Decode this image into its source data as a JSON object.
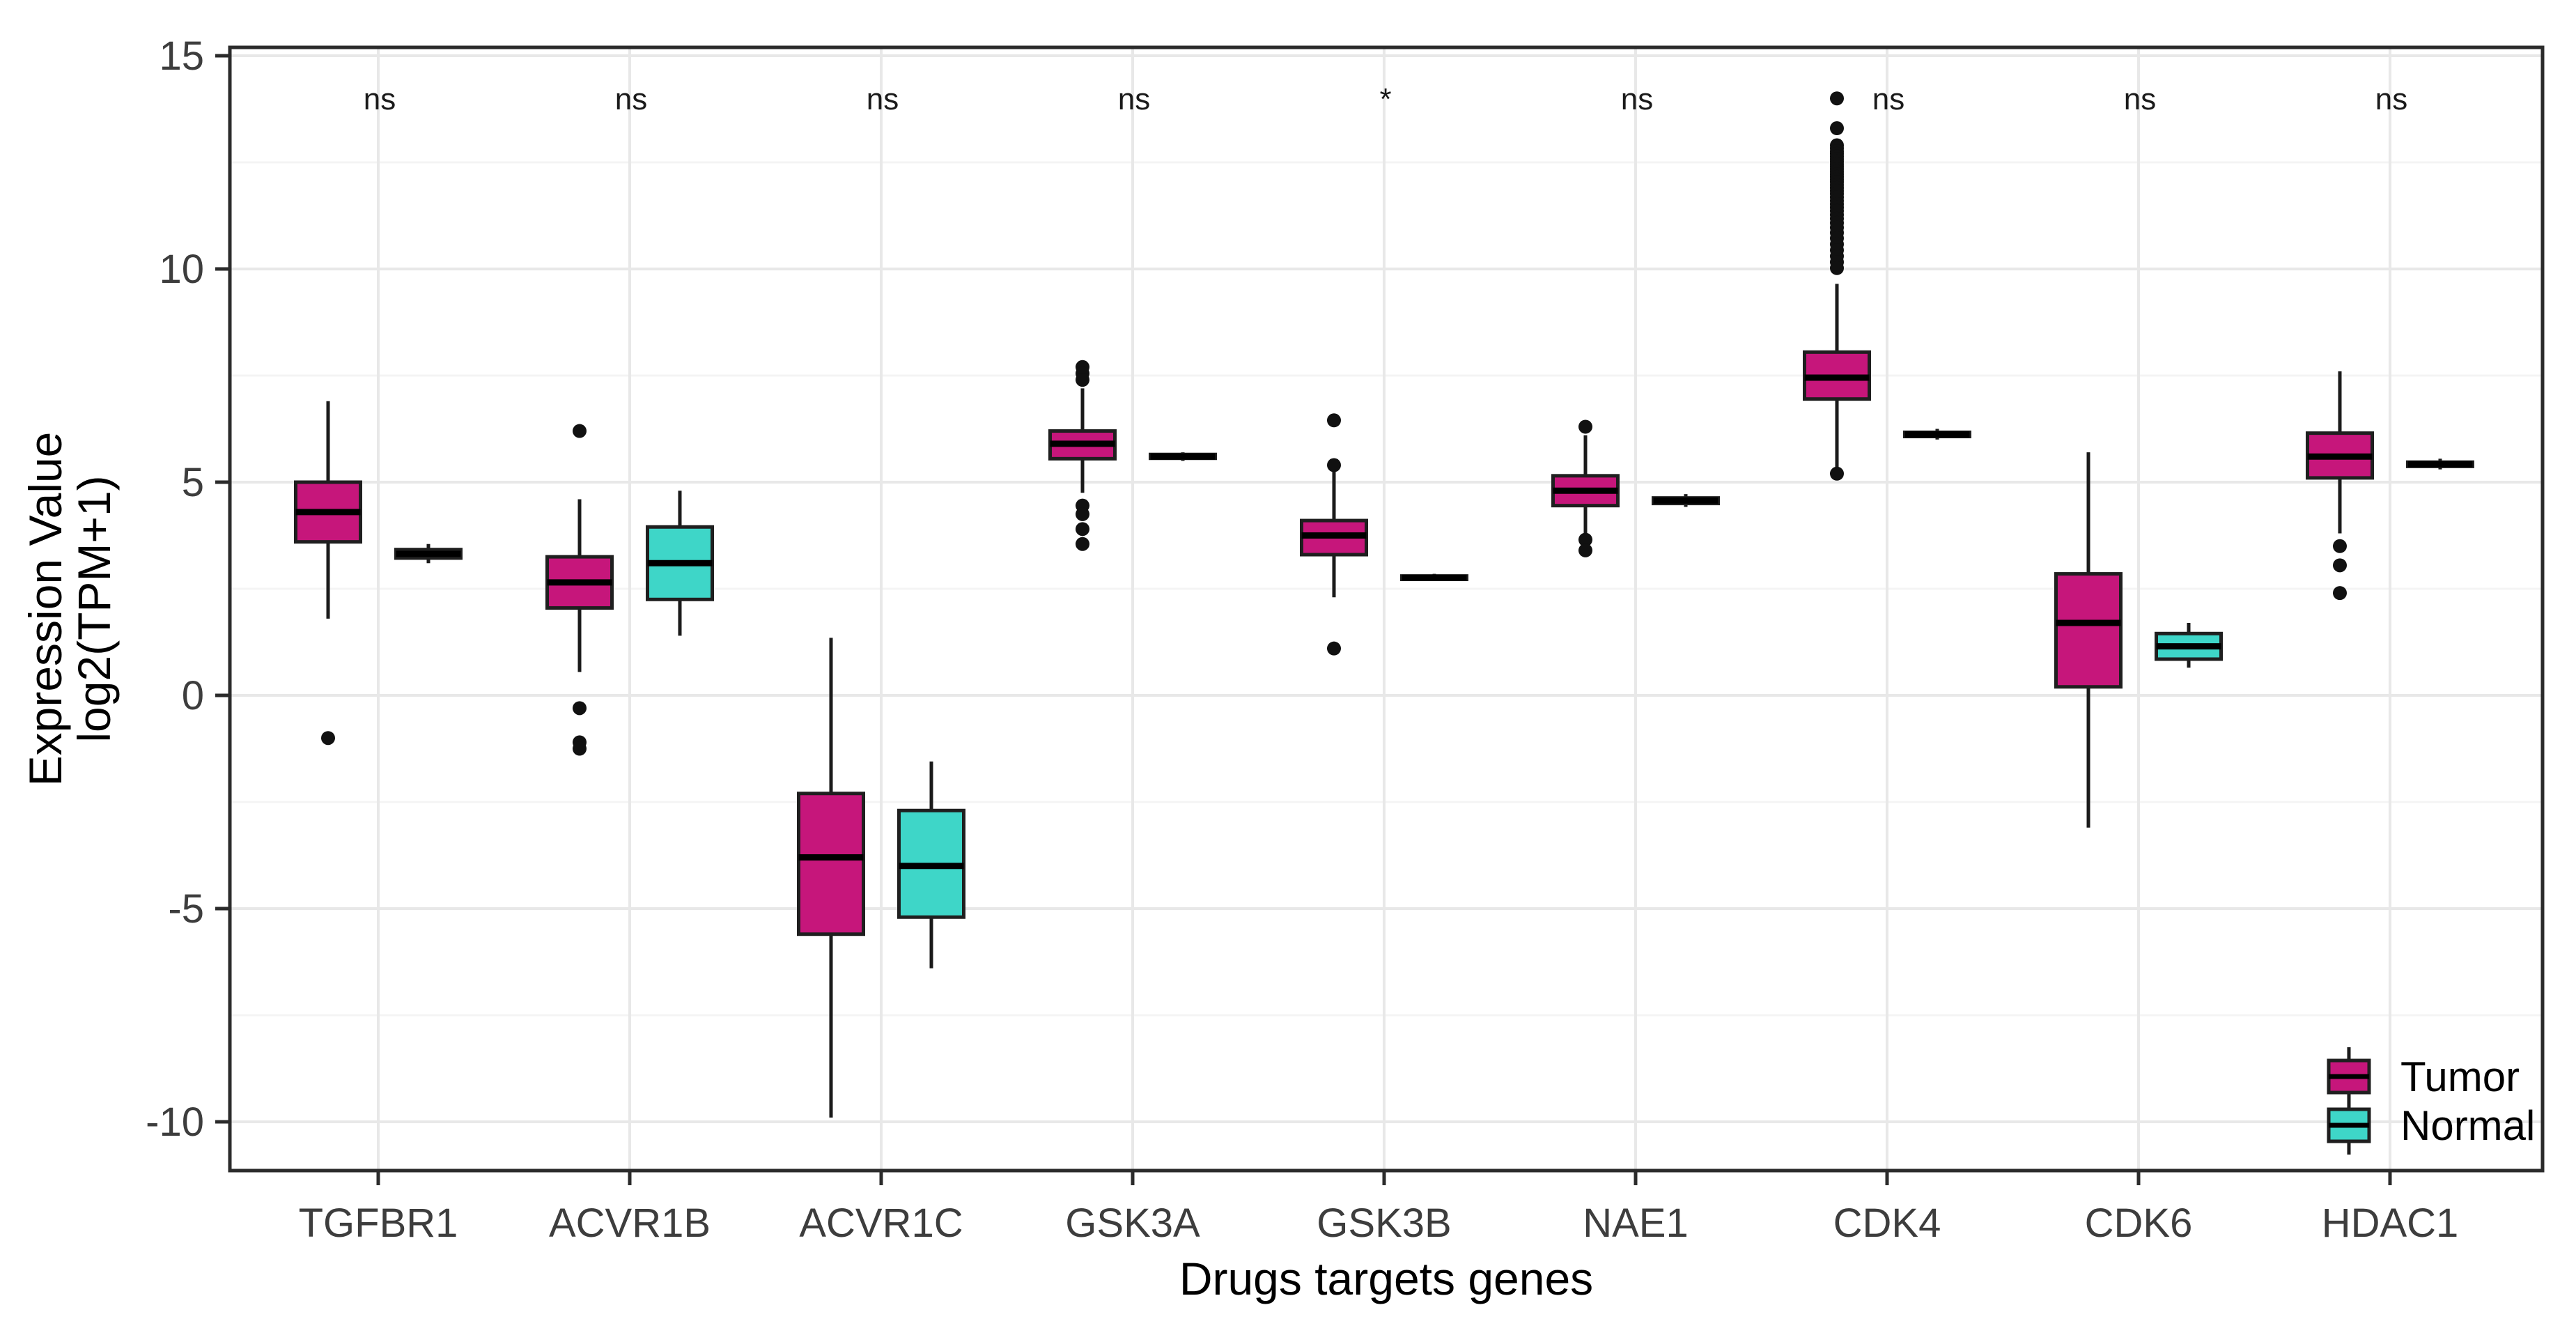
{
  "figure": {
    "kind": "grouped-boxplot",
    "background": "#ffffff"
  },
  "y_axis": {
    "title_line1": "Expression Value",
    "title_line2": "log2(TPM+1)",
    "tick_labels": [
      "15",
      "10",
      "5",
      "0",
      "-5",
      "-10"
    ],
    "tick_values": [
      15,
      10,
      5,
      0,
      -5,
      -10
    ],
    "minor_tick_values": [
      12.5,
      7.5,
      2.5,
      -2.5,
      -7.5
    ]
  },
  "x_axis": {
    "title": "Drugs targets genes",
    "tick_labels": [
      "TGFBR1",
      "ACVR1B",
      "ACVR1C",
      "GSK3A",
      "GSK3B",
      "NAE1",
      "CDK4",
      "CDK6",
      "HDAC1"
    ]
  },
  "legend": {
    "items": [
      {
        "label": "Tumor",
        "color": "#C6167B"
      },
      {
        "label": "Normal",
        "color": "#3ED6C8"
      }
    ]
  },
  "colors": {
    "tumor": "#C6167B",
    "normal": "#3ED6C8",
    "box_stroke": "#1F1F1F",
    "median_line": "#000000",
    "whisker": "#1A1A1A",
    "outlier": "#111111",
    "grid_major": "#E8E8E8",
    "grid_minor": "#F4F4F4",
    "panel_border": "#2B2B2B",
    "tick_mark": "#2B2B2B"
  },
  "chart_data": {
    "type": "boxplot",
    "title": "",
    "xlabel": "Drugs targets genes",
    "ylabel": "Expression Value log2(TPM+1)",
    "ylim": [
      -11.15,
      15.25
    ],
    "grid": true,
    "legend_position": "inside-bottom-right",
    "categories": [
      "TGFBR1",
      "ACVR1B",
      "ACVR1C",
      "GSK3A",
      "GSK3B",
      "NAE1",
      "CDK4",
      "CDK6",
      "HDAC1"
    ],
    "significance": [
      "ns",
      "ns",
      "ns",
      "ns",
      "*",
      "ns",
      "ns",
      "ns",
      "ns"
    ],
    "series": [
      {
        "name": "Tumor",
        "color": "#C6167B",
        "boxes": [
          {
            "gene": "TGFBR1",
            "low": 1.8,
            "q1": 3.6,
            "median": 4.3,
            "q3": 5.0,
            "high": 6.9,
            "outliers": [
              -1.0
            ]
          },
          {
            "gene": "ACVR1B",
            "low": 0.55,
            "q1": 2.05,
            "median": 2.65,
            "q3": 3.25,
            "high": 4.6,
            "outliers": [
              6.2,
              -0.3,
              -1.1,
              -1.25
            ]
          },
          {
            "gene": "ACVR1C",
            "low": -9.9,
            "q1": -5.6,
            "median": -3.8,
            "q3": -2.3,
            "high": 1.35,
            "outliers": []
          },
          {
            "gene": "GSK3A",
            "low": 4.75,
            "q1": 5.55,
            "median": 5.9,
            "q3": 6.2,
            "high": 7.2,
            "outliers": [
              7.7,
              7.55,
              7.4,
              4.45,
              4.25,
              3.9,
              3.55
            ]
          },
          {
            "gene": "GSK3B",
            "low": 2.3,
            "q1": 3.3,
            "median": 3.75,
            "q3": 4.1,
            "high": 5.25,
            "outliers": [
              6.45,
              5.4,
              1.1
            ]
          },
          {
            "gene": "NAE1",
            "low": 3.8,
            "q1": 4.45,
            "median": 4.8,
            "q3": 5.15,
            "high": 6.1,
            "outliers": [
              6.3,
              3.65,
              3.4
            ]
          },
          {
            "gene": "CDK4",
            "low": 5.25,
            "q1": 6.95,
            "median": 7.45,
            "q3": 8.05,
            "high": 9.65,
            "outliers": [
              14.0,
              13.3,
              12.9,
              12.83,
              12.76,
              12.7,
              12.64,
              12.58,
              12.52,
              12.46,
              12.4,
              12.34,
              12.28,
              12.22,
              12.16,
              12.1,
              12.04,
              11.97,
              11.9,
              11.83,
              11.76,
              11.68,
              11.6,
              11.52,
              11.44,
              11.36,
              11.27,
              11.18,
              11.08,
              10.97,
              10.85,
              10.72,
              10.58,
              10.44,
              10.3,
              10.16,
              10.02,
              5.2
            ]
          },
          {
            "gene": "CDK6",
            "low": -3.1,
            "q1": 0.2,
            "median": 1.7,
            "q3": 2.85,
            "high": 5.7,
            "outliers": []
          },
          {
            "gene": "HDAC1",
            "low": 3.8,
            "q1": 5.1,
            "median": 5.6,
            "q3": 6.15,
            "high": 7.6,
            "outliers": [
              3.5,
              3.05,
              2.4
            ]
          }
        ]
      },
      {
        "name": "Normal",
        "color": "#3ED6C8",
        "boxes": [
          {
            "gene": "TGFBR1",
            "low": 3.1,
            "q1": 3.22,
            "median": 3.32,
            "q3": 3.42,
            "high": 3.55,
            "outliers": []
          },
          {
            "gene": "ACVR1B",
            "low": 1.4,
            "q1": 2.25,
            "median": 3.1,
            "q3": 3.95,
            "high": 4.8,
            "outliers": []
          },
          {
            "gene": "ACVR1C",
            "low": -6.4,
            "q1": -5.2,
            "median": -4.0,
            "q3": -2.7,
            "high": -1.55,
            "outliers": []
          },
          {
            "gene": "GSK3A",
            "low": 5.5,
            "q1": 5.56,
            "median": 5.6,
            "q3": 5.65,
            "high": 5.7,
            "outliers": []
          },
          {
            "gene": "GSK3B",
            "low": 2.68,
            "q1": 2.72,
            "median": 2.76,
            "q3": 2.8,
            "high": 2.85,
            "outliers": []
          },
          {
            "gene": "NAE1",
            "low": 4.42,
            "q1": 4.5,
            "median": 4.57,
            "q3": 4.63,
            "high": 4.72,
            "outliers": []
          },
          {
            "gene": "CDK4",
            "low": 6.0,
            "q1": 6.07,
            "median": 6.12,
            "q3": 6.17,
            "high": 6.25,
            "outliers": []
          },
          {
            "gene": "CDK6",
            "low": 0.65,
            "q1": 0.85,
            "median": 1.15,
            "q3": 1.45,
            "high": 1.7,
            "outliers": []
          },
          {
            "gene": "HDAC1",
            "low": 5.3,
            "q1": 5.37,
            "median": 5.42,
            "q3": 5.47,
            "high": 5.55,
            "outliers": []
          }
        ]
      }
    ]
  }
}
